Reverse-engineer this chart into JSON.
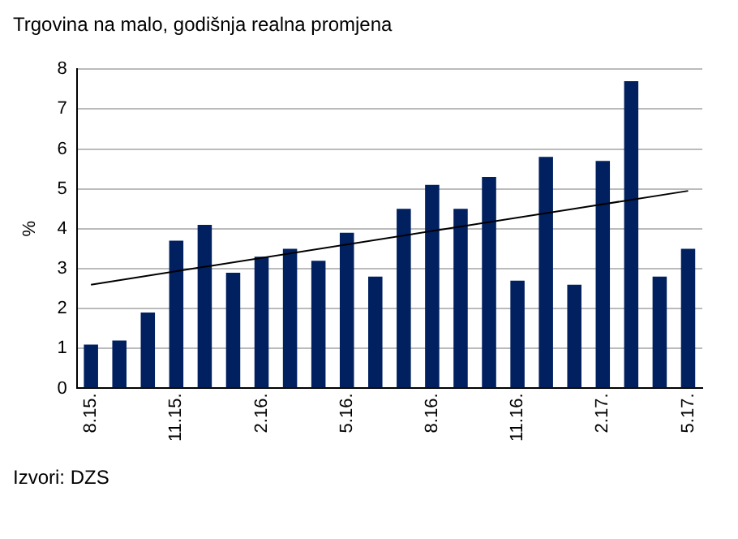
{
  "chart_data": {
    "type": "bar",
    "title": "Trgovina na malo, godišnja realna promjena",
    "ylabel": "%",
    "categories": [
      "8.15.",
      null,
      null,
      "11.15.",
      null,
      null,
      "2.16.",
      null,
      null,
      "5.16.",
      null,
      null,
      "8.16.",
      null,
      null,
      "11.16.",
      null,
      null,
      "2.17.",
      null,
      null,
      "5.17."
    ],
    "series": [
      {
        "color": "#002060",
        "values": [
          1.1,
          1.2,
          1.9,
          3.7,
          4.1,
          2.9,
          3.3,
          3.5,
          3.2,
          3.9,
          2.8,
          4.5,
          5.1,
          4.5,
          5.3,
          2.7,
          5.8,
          2.6,
          5.7,
          7.7,
          2.8,
          3.5
        ]
      },
      {
        "type": "line",
        "color": "#000000",
        "values": [
          2.6,
          null,
          null,
          null,
          null,
          null,
          null,
          null,
          null,
          null,
          null,
          null,
          null,
          null,
          null,
          null,
          null,
          null,
          null,
          null,
          null,
          4.95
        ]
      }
    ],
    "ylim": [
      0,
      8
    ],
    "yticks": [
      0,
      1,
      2,
      3,
      4,
      5,
      6,
      7,
      8
    ],
    "grid": "y",
    "legend": false,
    "marker": "none",
    "annotations": [
      "Izvori: DZS"
    ]
  }
}
